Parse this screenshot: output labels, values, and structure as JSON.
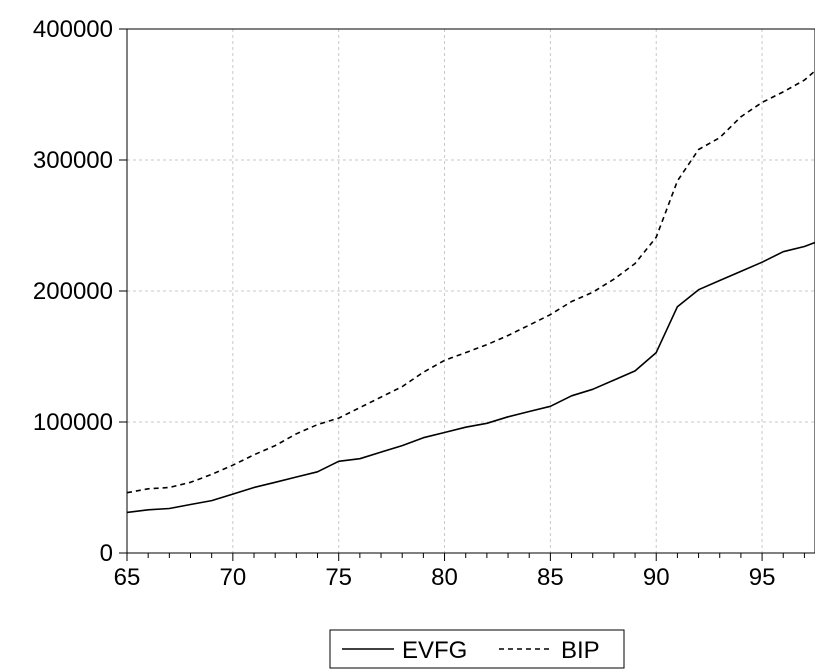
{
  "chart_data": {
    "type": "line",
    "title": "",
    "xlabel": "",
    "ylabel": "",
    "xlim": [
      65,
      97.5
    ],
    "ylim": [
      0,
      400000
    ],
    "x_ticks": [
      65,
      70,
      75,
      80,
      85,
      90,
      95
    ],
    "x_tick_labels": [
      "65",
      "70",
      "75",
      "80",
      "85",
      "90",
      "95"
    ],
    "y_ticks": [
      0,
      100000,
      200000,
      300000,
      400000
    ],
    "y_tick_labels": [
      "0",
      "100000",
      "200000",
      "300000",
      "400000"
    ],
    "grid": true,
    "legend_position": "bottom-center",
    "x": [
      65,
      66,
      67,
      68,
      69,
      70,
      71,
      72,
      73,
      74,
      75,
      76,
      77,
      78,
      79,
      80,
      81,
      82,
      83,
      84,
      85,
      86,
      87,
      88,
      89,
      90,
      91,
      92,
      93,
      94,
      95,
      96,
      97,
      97.5
    ],
    "series": [
      {
        "name": "EVFG",
        "line_style": "solid",
        "color": "#000000",
        "values": [
          31000,
          33000,
          34000,
          37000,
          40000,
          45000,
          50000,
          54000,
          58000,
          62000,
          70000,
          72000,
          77000,
          82000,
          88000,
          92000,
          96000,
          99000,
          104000,
          108000,
          112000,
          120000,
          125000,
          132000,
          139000,
          153000,
          188000,
          201000,
          208000,
          215000,
          222000,
          230000,
          234000,
          237000
        ]
      },
      {
        "name": "BIP",
        "line_style": "dashed",
        "color": "#000000",
        "values": [
          46000,
          49000,
          50000,
          54000,
          60000,
          67000,
          75000,
          82000,
          91000,
          98000,
          103000,
          111000,
          119000,
          127000,
          138000,
          147000,
          153000,
          159000,
          166000,
          174000,
          182000,
          192000,
          199000,
          209000,
          221000,
          241000,
          284000,
          308000,
          317000,
          333000,
          344000,
          352000,
          361000,
          368000
        ]
      }
    ]
  },
  "colors": {
    "background": "#ffffff",
    "axis": "#000000",
    "grid": "#c8c8c8"
  }
}
